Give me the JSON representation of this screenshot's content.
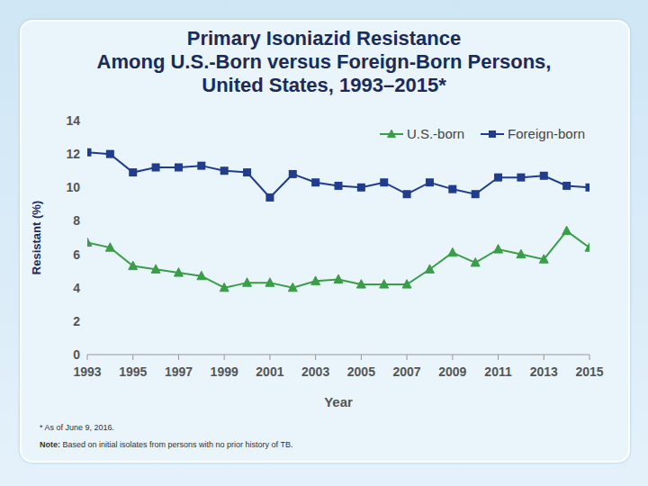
{
  "chart_data": {
    "type": "line",
    "title": "Primary Isoniazid Resistance\nAmong U.S.-Born versus Foreign-Born Persons,\nUnited States, 1993–2015*",
    "x_label": "Year",
    "y_label": "Resistant (%)",
    "footnote": "* As of June 9, 2016.",
    "note": "Note: Based on initial isolates from persons with no prior history of TB.",
    "x": [
      1993,
      1994,
      1995,
      1996,
      1997,
      1998,
      1999,
      2000,
      2001,
      2002,
      2003,
      2004,
      2005,
      2006,
      2007,
      2008,
      2009,
      2010,
      2011,
      2012,
      2013,
      2014,
      2015
    ],
    "series": [
      {
        "name": "U.S.-born",
        "color": "#3a9d48",
        "marker": "triangle",
        "values": [
          6.7,
          6.4,
          5.3,
          5.1,
          4.9,
          4.7,
          4.0,
          4.3,
          4.3,
          4.0,
          4.4,
          4.5,
          4.2,
          4.2,
          4.2,
          5.1,
          6.1,
          5.5,
          6.3,
          6.0,
          5.7,
          7.4,
          6.4
        ]
      },
      {
        "name": "Foreign-born",
        "color": "#1f3d8c",
        "marker": "square",
        "values": [
          12.1,
          12.0,
          10.9,
          11.2,
          11.2,
          11.3,
          11.0,
          10.9,
          9.4,
          10.8,
          10.3,
          10.1,
          10.0,
          10.3,
          9.6,
          10.3,
          9.9,
          9.6,
          10.6,
          10.6,
          10.7,
          10.1,
          10.0
        ]
      }
    ],
    "xlim": [
      1993,
      2015
    ],
    "xticks": [
      1993,
      1995,
      1997,
      1999,
      2001,
      2003,
      2005,
      2007,
      2009,
      2011,
      2013,
      2015
    ],
    "ylim": [
      0,
      14
    ],
    "yticks": [
      0,
      2,
      4,
      6,
      8,
      10,
      12,
      14
    ],
    "grid": false,
    "legend": "upper right"
  }
}
